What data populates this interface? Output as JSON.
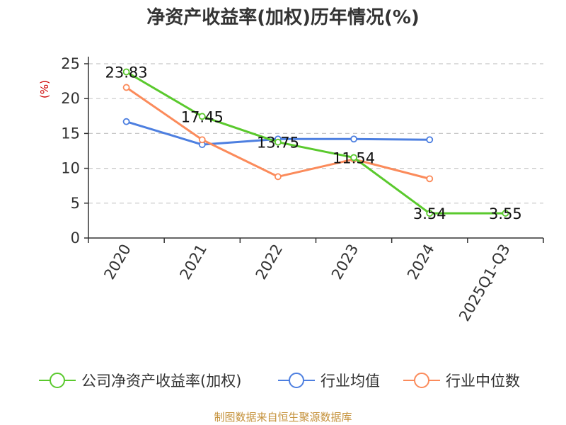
{
  "chart_data": {
    "type": "line",
    "title": "净资产收益率(加权)历年情况(%)",
    "ylabel": "(%)",
    "ylim": [
      0,
      25
    ],
    "yticks": [
      0,
      5,
      10,
      15,
      20,
      25
    ],
    "categories": [
      "2020",
      "2021",
      "2022",
      "2023",
      "2024",
      "2025Q1-Q3"
    ],
    "grid": true,
    "legend_position": "bottom",
    "series": [
      {
        "name": "公司净资产收益率(加权)",
        "color": "#5ac92d",
        "values": [
          23.83,
          17.45,
          13.75,
          11.54,
          3.54,
          3.55
        ],
        "labels": [
          "23.83",
          "17.45",
          "13.75",
          "11.54",
          "3.54",
          "3.55"
        ]
      },
      {
        "name": "行业均值",
        "color": "#4d7fe0",
        "values": [
          16.7,
          13.4,
          14.2,
          14.2,
          14.1,
          null
        ]
      },
      {
        "name": "行业中位数",
        "color": "#fb8b5b",
        "values": [
          21.6,
          14.1,
          8.8,
          11.3,
          8.5,
          null
        ]
      }
    ],
    "source": "制图数据来自恒生聚源数据库"
  }
}
